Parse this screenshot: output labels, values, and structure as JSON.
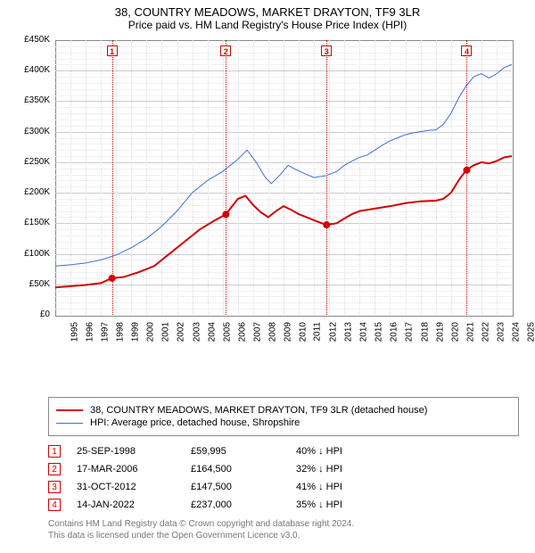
{
  "title_line1": "38, COUNTRY MEADOWS, MARKET DRAYTON, TF9 3LR",
  "title_line2": "Price paid vs. HM Land Registry's House Price Index (HPI)",
  "chart": {
    "type": "line",
    "x_years": [
      1995,
      1996,
      1997,
      1998,
      1999,
      2000,
      2001,
      2002,
      2003,
      2004,
      2005,
      2006,
      2007,
      2008,
      2009,
      2010,
      2011,
      2012,
      2013,
      2014,
      2015,
      2016,
      2017,
      2018,
      2019,
      2020,
      2021,
      2022,
      2023,
      2024,
      2025
    ],
    "ylabel_prefix": "£",
    "ylabel_suffix": "K",
    "ylim": [
      0,
      450000
    ],
    "ytick_step": 50000,
    "yminor_step": 10000,
    "background": "#ffffff",
    "grid_color": "#cccccc",
    "minor_grid_color": "#e2e2e2",
    "border_color": "#888888",
    "series": [
      {
        "name": "price_paid",
        "legend": "38, COUNTRY MEADOWS, MARKET DRAYTON, TF9 3LR (detached house)",
        "color": "#d40000",
        "width": 2,
        "points": [
          [
            1995.0,
            45000
          ],
          [
            1996.0,
            47000
          ],
          [
            1997.0,
            49000
          ],
          [
            1998.0,
            52000
          ],
          [
            1998.7,
            59995
          ],
          [
            1999.5,
            62000
          ],
          [
            2000.5,
            70000
          ],
          [
            2001.5,
            80000
          ],
          [
            2002.5,
            100000
          ],
          [
            2003.5,
            120000
          ],
          [
            2004.5,
            140000
          ],
          [
            2005.5,
            155000
          ],
          [
            2006.2,
            164500
          ],
          [
            2007.0,
            190000
          ],
          [
            2007.5,
            195000
          ],
          [
            2008.0,
            180000
          ],
          [
            2008.5,
            168000
          ],
          [
            2009.0,
            160000
          ],
          [
            2009.5,
            170000
          ],
          [
            2010.0,
            178000
          ],
          [
            2010.5,
            172000
          ],
          [
            2011.0,
            165000
          ],
          [
            2011.5,
            160000
          ],
          [
            2012.0,
            155000
          ],
          [
            2012.8,
            147500
          ],
          [
            2013.5,
            150000
          ],
          [
            2014.0,
            158000
          ],
          [
            2014.5,
            165000
          ],
          [
            2015.0,
            170000
          ],
          [
            2016.0,
            174000
          ],
          [
            2017.0,
            178000
          ],
          [
            2018.0,
            183000
          ],
          [
            2019.0,
            186000
          ],
          [
            2020.0,
            187000
          ],
          [
            2020.5,
            190000
          ],
          [
            2021.0,
            200000
          ],
          [
            2021.5,
            220000
          ],
          [
            2022.0,
            237000
          ],
          [
            2022.5,
            245000
          ],
          [
            2023.0,
            250000
          ],
          [
            2023.5,
            248000
          ],
          [
            2024.0,
            252000
          ],
          [
            2024.5,
            258000
          ],
          [
            2025.0,
            260000
          ]
        ]
      },
      {
        "name": "hpi",
        "legend": "HPI: Average price, detached house, Shropshire",
        "color": "#3b6fd6",
        "width": 1,
        "points": [
          [
            1995.0,
            80000
          ],
          [
            1996.0,
            82000
          ],
          [
            1997.0,
            85000
          ],
          [
            1998.0,
            90000
          ],
          [
            1999.0,
            98000
          ],
          [
            2000.0,
            110000
          ],
          [
            2001.0,
            125000
          ],
          [
            2002.0,
            145000
          ],
          [
            2003.0,
            170000
          ],
          [
            2004.0,
            200000
          ],
          [
            2005.0,
            220000
          ],
          [
            2006.0,
            235000
          ],
          [
            2007.0,
            255000
          ],
          [
            2007.6,
            270000
          ],
          [
            2008.2,
            250000
          ],
          [
            2008.8,
            225000
          ],
          [
            2009.2,
            215000
          ],
          [
            2009.8,
            230000
          ],
          [
            2010.3,
            245000
          ],
          [
            2010.8,
            238000
          ],
          [
            2011.5,
            230000
          ],
          [
            2012.0,
            225000
          ],
          [
            2012.8,
            228000
          ],
          [
            2013.5,
            235000
          ],
          [
            2014.0,
            245000
          ],
          [
            2014.5,
            252000
          ],
          [
            2015.0,
            258000
          ],
          [
            2015.5,
            262000
          ],
          [
            2016.0,
            270000
          ],
          [
            2016.5,
            278000
          ],
          [
            2017.0,
            285000
          ],
          [
            2017.5,
            290000
          ],
          [
            2018.0,
            295000
          ],
          [
            2018.5,
            298000
          ],
          [
            2019.0,
            300000
          ],
          [
            2019.5,
            302000
          ],
          [
            2020.0,
            303000
          ],
          [
            2020.5,
            312000
          ],
          [
            2021.0,
            330000
          ],
          [
            2021.5,
            355000
          ],
          [
            2022.0,
            375000
          ],
          [
            2022.5,
            390000
          ],
          [
            2023.0,
            395000
          ],
          [
            2023.5,
            388000
          ],
          [
            2024.0,
            395000
          ],
          [
            2024.5,
            405000
          ],
          [
            2025.0,
            410000
          ]
        ]
      }
    ],
    "markers": [
      {
        "label": "1",
        "x": 1998.73
      },
      {
        "label": "2",
        "x": 2006.21
      },
      {
        "label": "3",
        "x": 2012.83
      },
      {
        "label": "4",
        "x": 2022.04
      }
    ],
    "sale_points": [
      {
        "x": 1998.73,
        "y": 59995
      },
      {
        "x": 2006.21,
        "y": 164500
      },
      {
        "x": 2012.83,
        "y": 147500
      },
      {
        "x": 2022.04,
        "y": 237000
      }
    ],
    "marker_color": "#d40000",
    "sale_point_fill": "#d40000",
    "sale_point_radius": 4
  },
  "transactions_hpi_header": "HPI",
  "down_arrow_glyph": "↓",
  "transactions": [
    {
      "num": "1",
      "date": "25-SEP-1998",
      "price": "£59,995",
      "pct": "40%"
    },
    {
      "num": "2",
      "date": "17-MAR-2006",
      "price": "£164,500",
      "pct": "32%"
    },
    {
      "num": "3",
      "date": "31-OCT-2012",
      "price": "£147,500",
      "pct": "41%"
    },
    {
      "num": "4",
      "date": "14-JAN-2022",
      "price": "£237,000",
      "pct": "35%"
    }
  ],
  "footnote_line1": "Contains HM Land Registry data © Crown copyright and database right 2024.",
  "footnote_line2": "This data is licensed under the Open Government Licence v3.0."
}
